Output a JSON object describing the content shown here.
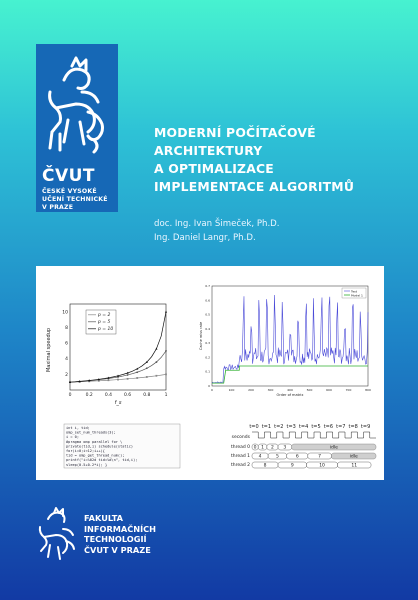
{
  "cvut": {
    "abbr": "ČVUT",
    "sub": [
      "ČESKÉ VYSOKÉ",
      "UČENÍ TECHNICKÉ",
      "V PRAZE"
    ]
  },
  "title": [
    "MODERNÍ POČÍTAČOVÉ",
    "ARCHITEKTURY",
    "A OPTIMALIZACE",
    "IMPLEMENTACE ALGORITMŮ"
  ],
  "authors": [
    "doc. Ing. Ivan Šimeček, Ph.D.",
    "Ing. Daniel Langr, Ph.D."
  ],
  "figures": {
    "speedup": {
      "ylabel": "Maximal speedup",
      "xlabel": "f_s",
      "xticks": [
        "0",
        "0.2",
        "0.4",
        "0.6",
        "0.8",
        "1"
      ],
      "yticks": [
        "2",
        "4",
        "6",
        "8",
        "10"
      ],
      "legend": [
        "p = 2",
        "p = 5",
        "p = 10"
      ]
    },
    "plot2": {
      "legend": [
        "Test",
        "Model 1"
      ],
      "ylabel": "Cache miss rate",
      "xlabel": "Order of matrix",
      "yticks": [
        "0",
        "0.1",
        "0.2",
        "0.3",
        "0.4",
        "0.5",
        "0.6",
        "0.7"
      ],
      "xticks": [
        "0",
        "100",
        "200",
        "300",
        "400",
        "500",
        "600",
        "700",
        "800"
      ]
    },
    "code": [
      "int i, tid;",
      "omp_set_num_threads(3);",
      "i = 0;",
      "#pragma omp parallel for \\",
      "  private(tid,i) schedule(static)",
      "  for(i=0;i<12;i++){",
      "    tid = omp_get_thread_num();",
      "    printf(\"i=%02d tid=%d\\n\", tid,i);",
      "    sleep(0.5+0.2*i); }"
    ],
    "timeline": {
      "times": [
        "t=0",
        "t=1",
        "t=2",
        "t=3",
        "t=4",
        "t=5",
        "t=6",
        "t=7",
        "t=8",
        "t=9"
      ],
      "seconds_label": "seconds",
      "rows": [
        {
          "label": "thread 0",
          "cells": [
            "0",
            "1",
            "2",
            "3"
          ],
          "idle": "idle"
        },
        {
          "label": "thread 1",
          "cells": [
            "4",
            "5",
            "6",
            "7"
          ],
          "idle": "idle"
        },
        {
          "label": "thread 2",
          "cells": [
            "8",
            "9",
            "10",
            "11"
          ],
          "idle": ""
        }
      ]
    }
  },
  "fit": [
    "FAKULTA",
    "INFORMAČNÍCH",
    "TECHNOLOGIÍ",
    "ČVUT V PRAZE"
  ],
  "colors": {
    "cvut_blue": "#1668b6",
    "plot_blue": "#4b4bd8",
    "plot_green": "#30b030"
  }
}
